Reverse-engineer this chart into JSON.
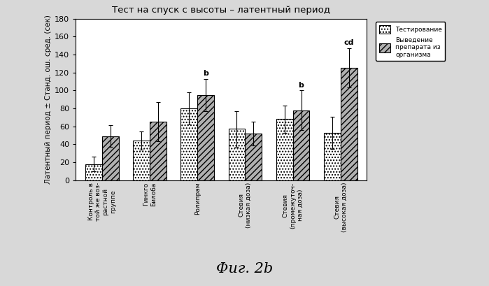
{
  "title": "Тест на спуск с высоты – латентный период",
  "ylabel": "Латентный период ± Станд. ош. сред. (сек)",
  "ylim": [
    0,
    180
  ],
  "yticks": [
    0,
    20,
    40,
    60,
    80,
    100,
    120,
    140,
    160,
    180
  ],
  "categories": [
    "Контроль в\nтой же воз-\nрастной\nгруппе",
    "Гинкго\nБилоба",
    "Ролипрам",
    "Стевия\n(низкая доза)",
    "Стевия\n(промежуточ-\nная доза)",
    "Стевия\n(высокая доза)"
  ],
  "bar1_values": [
    18,
    44,
    80,
    57,
    68,
    53
  ],
  "bar2_values": [
    49,
    65,
    95,
    52,
    78,
    125
  ],
  "bar1_errors": [
    8,
    10,
    18,
    20,
    15,
    18
  ],
  "bar2_errors": [
    12,
    22,
    18,
    13,
    22,
    22
  ],
  "significance_labels": {
    "2": "b",
    "4": "b",
    "5": "cd"
  },
  "legend_label1": "Тестирование",
  "legend_label2": "Выведение\nпрепарата из\nорганизма",
  "background_color": "#f0f0f0",
  "fig_caption": "Фиг. 2b"
}
